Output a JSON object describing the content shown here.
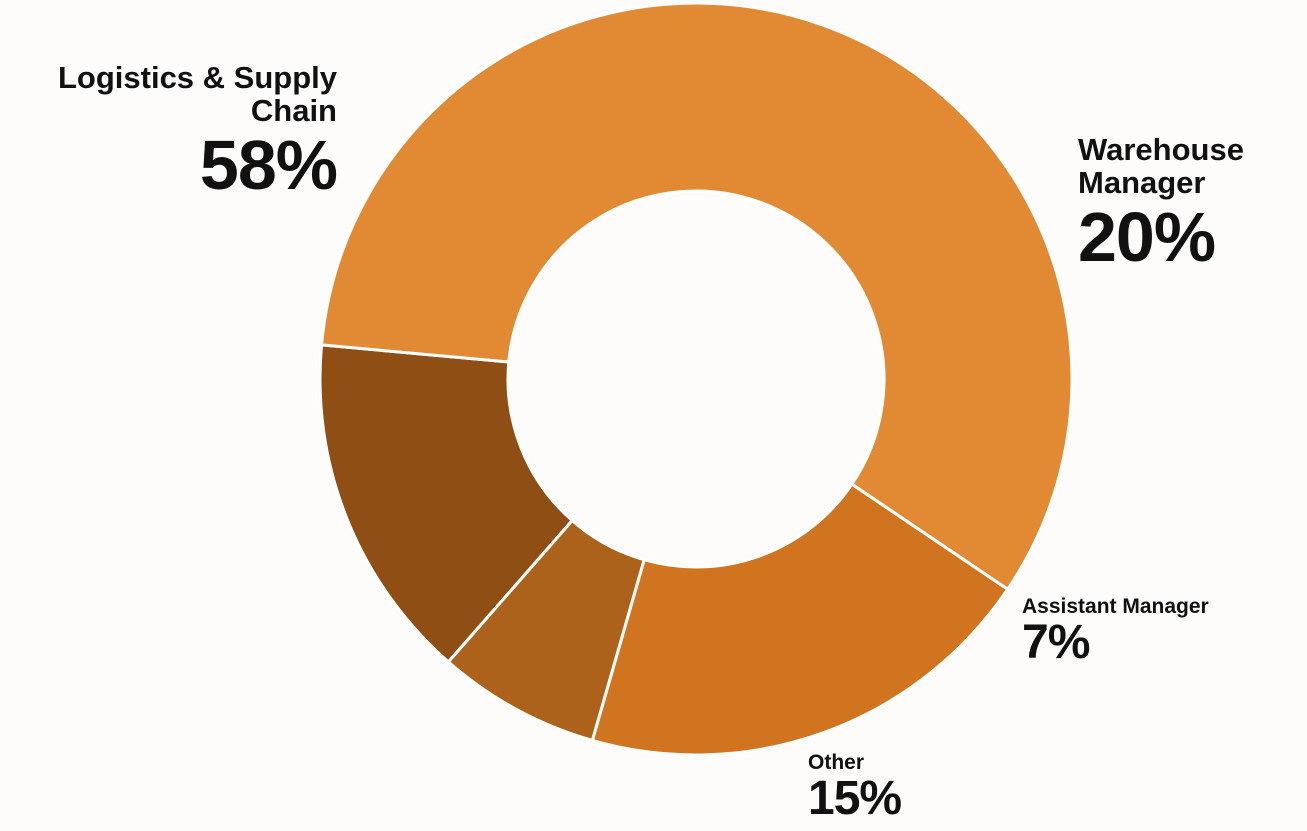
{
  "chart_data": {
    "type": "pie",
    "title": "",
    "categories": [
      "Logistics & Supply Chain",
      "Warehouse Manager",
      "Assistant Manager",
      "Other"
    ],
    "values": [
      58,
      20,
      7,
      15
    ],
    "labels": [
      "58%",
      "20%",
      "7%",
      "15%"
    ],
    "colors": [
      "#e28934",
      "#d07420",
      "#ad621b",
      "#8f4e14"
    ],
    "legend": "none"
  }
}
